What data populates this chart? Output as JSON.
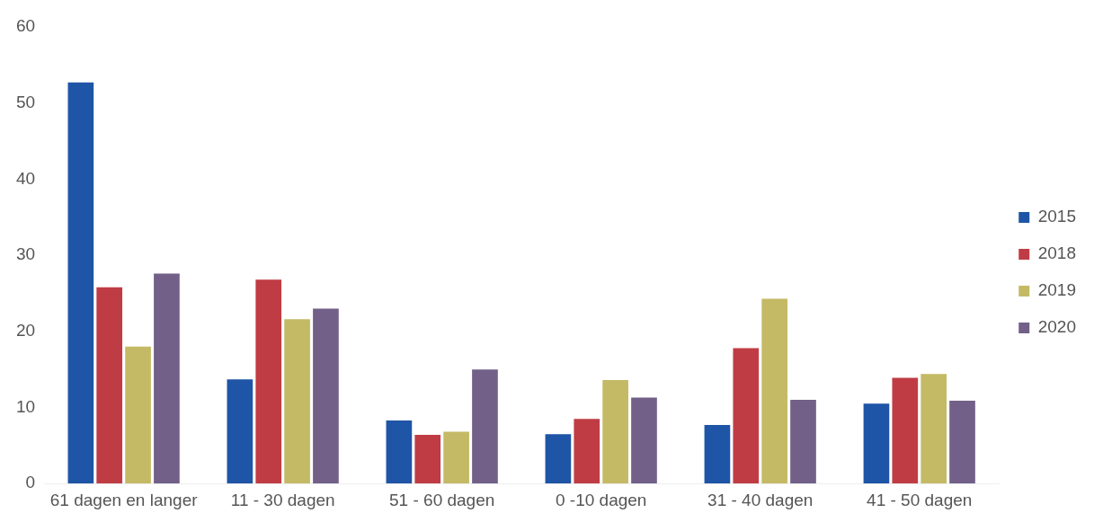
{
  "chart_data": {
    "type": "bar",
    "categories": [
      "61 dagen en langer",
      "11 - 30 dagen",
      "51 - 60 dagen",
      "0 -10 dagen",
      "31 - 40 dagen",
      "41 - 50 dagen"
    ],
    "series": [
      {
        "name": "2015",
        "color": "#1f55a6",
        "values": [
          52.7,
          13.7,
          8.3,
          6.5,
          7.7,
          10.5
        ]
      },
      {
        "name": "2018",
        "color": "#c03c44",
        "values": [
          25.8,
          26.8,
          6.4,
          8.5,
          17.8,
          13.9
        ]
      },
      {
        "name": "2019",
        "color": "#c4ba66",
        "values": [
          18.0,
          21.6,
          6.8,
          13.6,
          24.3,
          14.4
        ]
      },
      {
        "name": "2020",
        "color": "#726088",
        "values": [
          27.6,
          23.0,
          15.0,
          11.3,
          11.0,
          10.9
        ]
      }
    ],
    "ylim": [
      0,
      60
    ],
    "yticks": [
      0,
      10,
      20,
      30,
      40,
      50,
      60
    ],
    "grid": false,
    "legend": "right"
  }
}
